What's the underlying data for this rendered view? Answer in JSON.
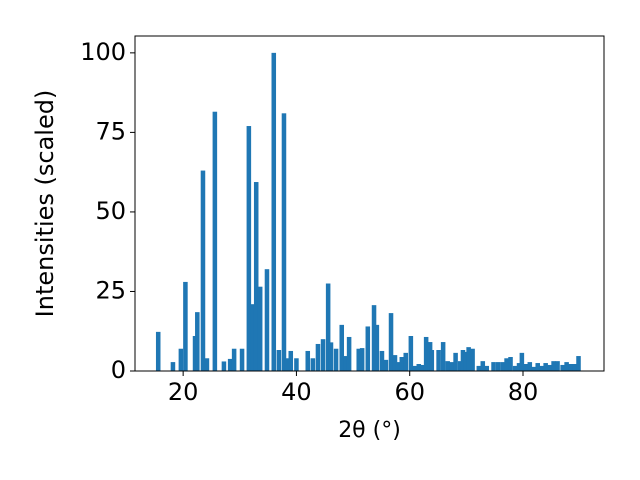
{
  "chart_data": {
    "type": "bar",
    "x_label": "2θ (°)",
    "y_label": "Intensities (scaled)",
    "color": "#1f77b4",
    "x": [
      15.6,
      18.2,
      19.6,
      20.4,
      22.1,
      22.5,
      23.5,
      24.2,
      25.6,
      27.2,
      28.3,
      29.0,
      30.4,
      31.6,
      32.3,
      32.9,
      33.6,
      34.8,
      36.0,
      36.9,
      37.8,
      38.3,
      39.0,
      40.0,
      42.0,
      42.9,
      43.8,
      44.7,
      45.6,
      46.1,
      47.0,
      48.0,
      48.7,
      49.3,
      51.0,
      51.6,
      52.6,
      53.7,
      54.2,
      55.1,
      55.8,
      56.7,
      57.4,
      57.9,
      58.6,
      59.3,
      60.2,
      60.9,
      61.6,
      62.2,
      62.9,
      63.6,
      63.9,
      65.1,
      65.9,
      66.7,
      67.4,
      68.1,
      68.9,
      69.4,
      69.9,
      70.4,
      71.1,
      72.2,
      72.9,
      73.6,
      74.8,
      75.6,
      76.4,
      77.1,
      77.8,
      78.6,
      79.3,
      79.8,
      80.5,
      81.2,
      81.9,
      82.6,
      83.3,
      84.0,
      84.7,
      85.4,
      86.1,
      87.0,
      87.7,
      88.4,
      89.1,
      89.8
    ],
    "values": [
      12.3,
      2.8,
      7,
      28,
      11,
      18.5,
      63,
      4,
      81.5,
      3,
      3.8,
      7,
      7,
      77,
      21,
      59.4,
      26.5,
      32,
      100,
      6.6,
      81,
      4,
      6.3,
      4,
      6.3,
      4,
      8.5,
      10,
      27.5,
      9,
      7,
      14.5,
      4.7,
      10.7,
      7,
      7.2,
      14,
      20.7,
      14.5,
      6.3,
      3.5,
      18.2,
      5,
      2.8,
      4.4,
      5.7,
      11,
      1.6,
      2.2,
      1.9,
      10.7,
      9.1,
      6.6,
      6.6,
      9.1,
      3.1,
      2.8,
      5.7,
      3.1,
      6.6,
      6,
      7.5,
      7,
      1.6,
      3.1,
      1.6,
      2.8,
      2.8,
      2.8,
      4,
      4.4,
      1.6,
      2.5,
      5.7,
      2.2,
      2.8,
      1.3,
      2.5,
      1.6,
      2.5,
      1.9,
      3.1,
      3.1,
      1.9,
      2.8,
      2.2,
      2.2,
      4.7
    ],
    "xlim": [
      11.5,
      94.3
    ],
    "ylim": [
      0,
      105.3
    ],
    "xticks": [
      20,
      40,
      60,
      80
    ],
    "yticks": [
      0,
      25,
      50,
      75,
      100
    ]
  }
}
